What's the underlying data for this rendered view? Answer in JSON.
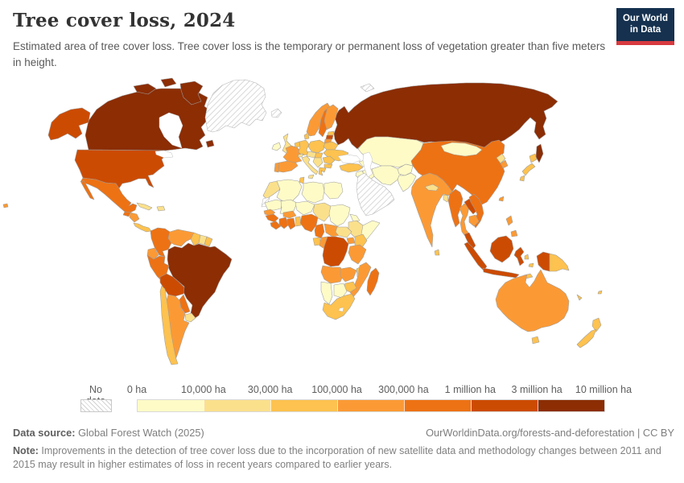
{
  "header": {
    "title": "Tree cover loss, 2024",
    "subtitle": "Estimated area of tree cover loss. Tree cover loss is the temporary or permanent loss of vegetation greater than five meters in height.",
    "logo": {
      "line1": "Our World",
      "line2": "in Data",
      "bg_color": "#15314F",
      "bar_color": "#D73A3E"
    }
  },
  "legend": {
    "no_data_label": "No data",
    "tick_labels": [
      "0 ha",
      "10,000 ha",
      "30,000 ha",
      "100,000 ha",
      "300,000 ha",
      "1 million ha",
      "3 million ha",
      "10 million ha"
    ],
    "bin_colors": [
      "#FFFBC7",
      "#FBE08C",
      "#FDC24F",
      "#FB9A35",
      "#ED7214",
      "#CC4B02",
      "#8C2D04"
    ],
    "hatch_color": "#d2d2d2"
  },
  "footer": {
    "source_label": "Data source:",
    "source_value": " Global Forest Watch (2025)",
    "link": "OurWorldinData.org/forests-and-deforestation",
    "cc": " | CC BY",
    "note_label": "Note:",
    "note_text": " Improvements in the detection of tree cover loss due to the incorporation of new satellite data and methodology changes between 2011 and 2015 may result in higher estimates of loss in recent years compared to earlier years."
  },
  "map": {
    "border_color": "#9e9e9e",
    "water_color": "#ffffff",
    "countries": {
      "alaska": "#CC4B02",
      "canada": "#8C2D04",
      "canada-baffin": "#8C2D04",
      "canada-victoria": "#8C2D04",
      "canada-arctic": "#8C2D04",
      "newfoundland": "#8C2D04",
      "usa": "#CC4B02",
      "mexico": "#ED7214",
      "baja": "#ED7214",
      "guatemala": "#ED7214",
      "honduras-nicaragua": "#FB9A35",
      "costa-panama": "#FDC24F",
      "cuba": "#FBE08C",
      "hispaniola": "#FBE08C",
      "greenland": "nodata",
      "iceland": "nodata",
      "svalbard": "nodata",
      "colombia": "#ED7214",
      "venezuela": "#FB9A35",
      "guyana": "#FDC24F",
      "suriname": "#FBE08C",
      "fr-guiana": "#FDC24F",
      "ecuador": "#FB9A35",
      "peru": "#ED7214",
      "brazil": "#8C2D04",
      "bolivia": "#CC4B02",
      "paraguay": "#ED7214",
      "chile": "#FDC24F",
      "argentina": "#FB9A35",
      "uruguay": "#FBE08C",
      "ireland": "#FFFBC7",
      "uk": "#FBE08C",
      "portugal": "#FB9A35",
      "spain": "#FB9A35",
      "france": "#FB9A35",
      "benelux": "#FDC24F",
      "germany": "#FDC24F",
      "denmark": "#FDC24F",
      "norway": "#FB9A35",
      "sweden": "#ED7214",
      "finland": "#FB9A35",
      "estonia": "#FDC24F",
      "latvia": "#CC4B02",
      "lithuania": "#FB9A35",
      "poland": "#FDC24F",
      "belarus": "#FDC24F",
      "ukraine": "#FDC24F",
      "czech-austria": "#FBE08C",
      "hungary-slovakia": "#FDC24F",
      "romania": "#FDC24F",
      "bulgaria": "#FDC24F",
      "balkans": "#FBE08C",
      "greece": "#FDC24F",
      "italy": "#FBE08C",
      "sicily": "#FBE08C",
      "switzerland": "#FBE08C",
      "turkey": "#FDC24F",
      "russia": "#8C2D04",
      "sakhalin": "#8C2D04",
      "kazakh-centralasia": "#FFFBC7",
      "caucasus": "#FFFBC7",
      "iran": "#FFFBC7",
      "iraq": "#FFFBC7",
      "levant": "#FFFBC7",
      "saudi": "nodata",
      "afghanistan": "#FFFBC7",
      "pakistan": "#FFFBC7",
      "india": "#FB9A35",
      "srilanka": "#FDC24F",
      "nepal": "#FBE08C",
      "bangladesh": "#FBE08C",
      "china": "#ED7214",
      "mongolia": "#FFFBC7",
      "north-korea": "#FBE08C",
      "south-korea": "#FB9A35",
      "japan-hokkaido": "#FDC24F",
      "japan-honshu": "#FDC24F",
      "japan-kyushu": "#FDC24F",
      "taiwan": "#FB9A35",
      "myanmar": "#ED7214",
      "thailand": "#FB9A35",
      "laos": "#CC4B02",
      "vietnam": "#ED7214",
      "cambodia": "#FB9A35",
      "malaysia-pen": "#CC4B02",
      "sumatra": "#CC4B02",
      "borneo": "#CC4B02",
      "java": "#CC4B02",
      "sulawesi": "#CC4B02",
      "moluccas-1": "#FDC24F",
      "moluccas-2": "#FDC24F",
      "timor": "#FDC24F",
      "papua-indonesia": "#CC4B02",
      "png": "#FDC24F",
      "philippines-luzon": "#FB9A35",
      "philippines-mindanao": "#FB9A35",
      "australia": "#FB9A35",
      "tasmania": "#FDC24F",
      "nz-north": "#FDC24F",
      "nz-south": "#FDC24F",
      "new-caledonia": "#FDC24F",
      "fiji": "#FDC24F",
      "morocco": "#FBE08C",
      "wsahara": "nodata",
      "algeria": "#FFFBC7",
      "tunisia": "#FDC24F",
      "libya": "#FFFBC7",
      "egypt": "#FFFBC7",
      "mauritania": "#FFFBC7",
      "mali": "#FFFBC7",
      "niger": "#FFFBC7",
      "chad": "#FBE08C",
      "sudan": "#FFFBC7",
      "eritrea": "#FFFBC7",
      "ethiopia": "#FBE08C",
      "somalia": "#FFFBC7",
      "senegal": "#FB9A35",
      "guinea": "#ED7214",
      "sierra-liberia": "#ED7214",
      "ivory-coast": "#ED7214",
      "ghana": "#ED7214",
      "togo-benin": "#FDC24F",
      "burkina": "#FB9A35",
      "nigeria": "#ED7214",
      "cameroon": "#ED7214",
      "car": "#FB9A35",
      "south-sudan": "#FBE08C",
      "uganda": "#FB9A35",
      "kenya": "#FDC24F",
      "gabon": "#FDC24F",
      "congo": "#FB9A35",
      "drc": "#CC4B02",
      "tanzania": "#FB9A35",
      "angola": "#FB9A35",
      "zambia": "#FB9A35",
      "malawi": "#FDC24F",
      "mozambique": "#FB9A35",
      "zimbabwe": "#FDC24F",
      "botswana": "#FFFBC7",
      "namibia": "#FFFBC7",
      "south-africa": "#FDC24F",
      "madagascar": "#ED7214",
      "hawaii": "#FB9A35"
    }
  }
}
